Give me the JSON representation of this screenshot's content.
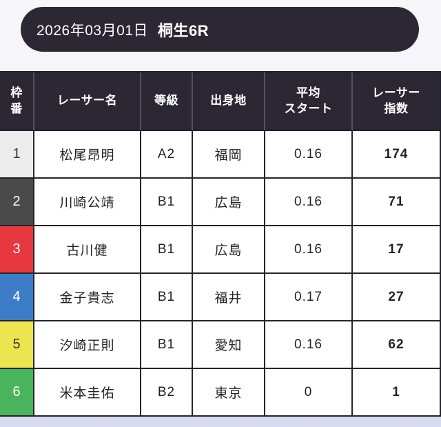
{
  "page": {
    "background_top": "#f7f7fa",
    "background_bottom": "#d8daf1"
  },
  "header": {
    "date": "2026年03月01日",
    "race": "桐生6R",
    "background": "#2b2834",
    "text_color": "#ffffff"
  },
  "table": {
    "header_background": "#2b2834",
    "header_text_color": "#ffffff",
    "border_color": "#25232d",
    "columns": {
      "waku": {
        "line1": "枠",
        "line2": "番"
      },
      "name": {
        "label": "レーサー名"
      },
      "grade": {
        "label": "等級"
      },
      "origin": {
        "label": "出身地"
      },
      "avg_start": {
        "line1": "平均",
        "line2": "スタート"
      },
      "index": {
        "line1": "レーサー",
        "line2": "指数"
      }
    },
    "rows": [
      {
        "waku": "1",
        "name": "松尾昂明",
        "grade": "A2",
        "origin": "福岡",
        "avg_start": "0.16",
        "index": "174",
        "waku_bg": "#ececec",
        "waku_fg": "#333333"
      },
      {
        "waku": "2",
        "name": "川崎公靖",
        "grade": "B1",
        "origin": "広島",
        "avg_start": "0.16",
        "index": "71",
        "waku_bg": "#4a4a4a",
        "waku_fg": "#ffffff"
      },
      {
        "waku": "3",
        "name": "古川健",
        "grade": "B1",
        "origin": "広島",
        "avg_start": "0.16",
        "index": "17",
        "waku_bg": "#e8383f",
        "waku_fg": "#ffffff"
      },
      {
        "waku": "4",
        "name": "金子貴志",
        "grade": "B1",
        "origin": "福井",
        "avg_start": "0.17",
        "index": "27",
        "waku_bg": "#3d7dc8",
        "waku_fg": "#ffffff"
      },
      {
        "waku": "5",
        "name": "汐崎正則",
        "grade": "B1",
        "origin": "愛知",
        "avg_start": "0.16",
        "index": "62",
        "waku_bg": "#ece54f",
        "waku_fg": "#333333"
      },
      {
        "waku": "6",
        "name": "米本圭佑",
        "grade": "B2",
        "origin": "東京",
        "avg_start": "0",
        "index": "1",
        "waku_bg": "#4ab45c",
        "waku_fg": "#ffffff"
      }
    ]
  }
}
